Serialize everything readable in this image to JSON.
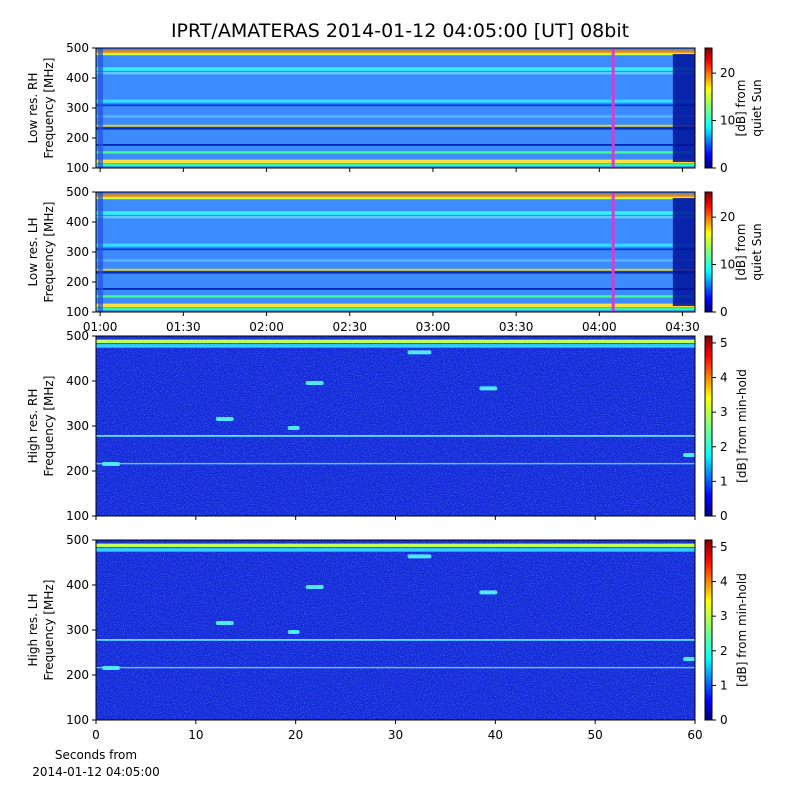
{
  "title": "IPRT/AMATERAS 2014-01-12 04:05:00 [UT]   08bit",
  "xlabel": [
    "Seconds from",
    "2014-01-12 04:05:00"
  ],
  "chart_data": [
    {
      "type": "heatmap",
      "ylabel": [
        "Low res. RH",
        "Frequency [MHz]"
      ],
      "xlim": [
        58.5,
        274.5
      ],
      "xticks": [
        60,
        90,
        120,
        150,
        180,
        210,
        240,
        270
      ],
      "ylim": [
        100,
        500
      ],
      "yticks": [
        100,
        200,
        300,
        400,
        500
      ],
      "highlight": {
        "value": 245,
        "color": "#d040d0"
      },
      "colorbar": {
        "label": [
          "[dB] from",
          "quiet Sun"
        ],
        "lim": [
          0,
          25.3
        ],
        "ticks": [
          0,
          10,
          20
        ]
      }
    },
    {
      "type": "heatmap",
      "ylabel": [
        "Low res. LH",
        "Frequency [MHz]"
      ],
      "xlim": [
        58.5,
        274.5
      ],
      "xticks": [
        {
          "value": 60,
          "label": "01:00"
        },
        {
          "value": 90,
          "label": "01:30"
        },
        {
          "value": 120,
          "label": "02:00"
        },
        {
          "value": 150,
          "label": "02:30"
        },
        {
          "value": 180,
          "label": "03:00"
        },
        {
          "value": 210,
          "label": "03:30"
        },
        {
          "value": 240,
          "label": "04:00"
        },
        {
          "value": 270,
          "label": "04:30"
        }
      ],
      "ylim": [
        100,
        500
      ],
      "yticks": [
        100,
        200,
        300,
        400,
        500
      ],
      "highlight": {
        "value": 245,
        "color": "#d040d0"
      },
      "colorbar": {
        "label": [
          "[dB] from",
          "quiet Sun"
        ],
        "lim": [
          0,
          25.3
        ],
        "ticks": [
          0,
          10,
          20
        ]
      }
    },
    {
      "type": "heatmap",
      "ylabel": [
        "High res. RH",
        "Frequency [MHz]"
      ],
      "xlim": [
        0,
        60
      ],
      "xticks": [
        0,
        10,
        20,
        30,
        40,
        50,
        60
      ],
      "ylim": [
        100,
        500
      ],
      "yticks": [
        100,
        200,
        300,
        400,
        500
      ],
      "colorbar": {
        "label": [
          "[dB] from min-hold"
        ],
        "lim": [
          0,
          5.2
        ],
        "ticks": [
          0,
          1,
          2,
          3,
          4,
          5
        ]
      }
    },
    {
      "type": "heatmap",
      "ylabel": [
        "High res. LH",
        "Frequency [MHz]"
      ],
      "xlim": [
        0,
        60
      ],
      "xticks": [
        {
          "value": 0,
          "label": "0"
        },
        {
          "value": 10,
          "label": "10"
        },
        {
          "value": 20,
          "label": "20"
        },
        {
          "value": 30,
          "label": "30"
        },
        {
          "value": 40,
          "label": "40"
        },
        {
          "value": 50,
          "label": "50"
        },
        {
          "value": 60,
          "label": "60"
        }
      ],
      "ylim": [
        100,
        500
      ],
      "yticks": [
        100,
        200,
        300,
        400,
        500
      ],
      "colorbar": {
        "label": [
          "[dB] from min-hold"
        ],
        "lim": [
          0,
          5.2
        ],
        "ticks": [
          0,
          1,
          2,
          3,
          4,
          5
        ]
      }
    }
  ]
}
